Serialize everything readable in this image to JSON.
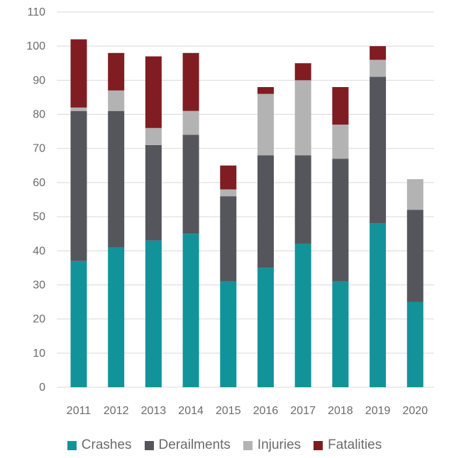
{
  "chart_data": {
    "type": "bar",
    "stacked": true,
    "title": "",
    "xlabel": "",
    "ylabel": "",
    "ylim": [
      0,
      110
    ],
    "yticks": [
      0,
      10,
      20,
      30,
      40,
      50,
      60,
      70,
      80,
      90,
      100,
      110
    ],
    "grid": true,
    "legend_position": "bottom",
    "categories": [
      "2011",
      "2012",
      "2013",
      "2014",
      "2015",
      "2016",
      "2017",
      "2018",
      "2019",
      "2020"
    ],
    "series": [
      {
        "name": "Crashes",
        "color": "#12939a",
        "values": [
          37,
          41,
          43,
          45,
          31,
          35,
          42,
          31,
          48,
          25
        ]
      },
      {
        "name": "Derailments",
        "color": "#54565b",
        "values": [
          44,
          40,
          28,
          29,
          25,
          33,
          26,
          36,
          43,
          27
        ]
      },
      {
        "name": "Injuries",
        "color": "#b3b3b3",
        "values": [
          1,
          6,
          5,
          7,
          2,
          18,
          22,
          10,
          5,
          9
        ]
      },
      {
        "name": "Fatalities",
        "color": "#7f1d22",
        "values": [
          20,
          11,
          21,
          17,
          7,
          2,
          5,
          11,
          4,
          0
        ]
      }
    ]
  }
}
